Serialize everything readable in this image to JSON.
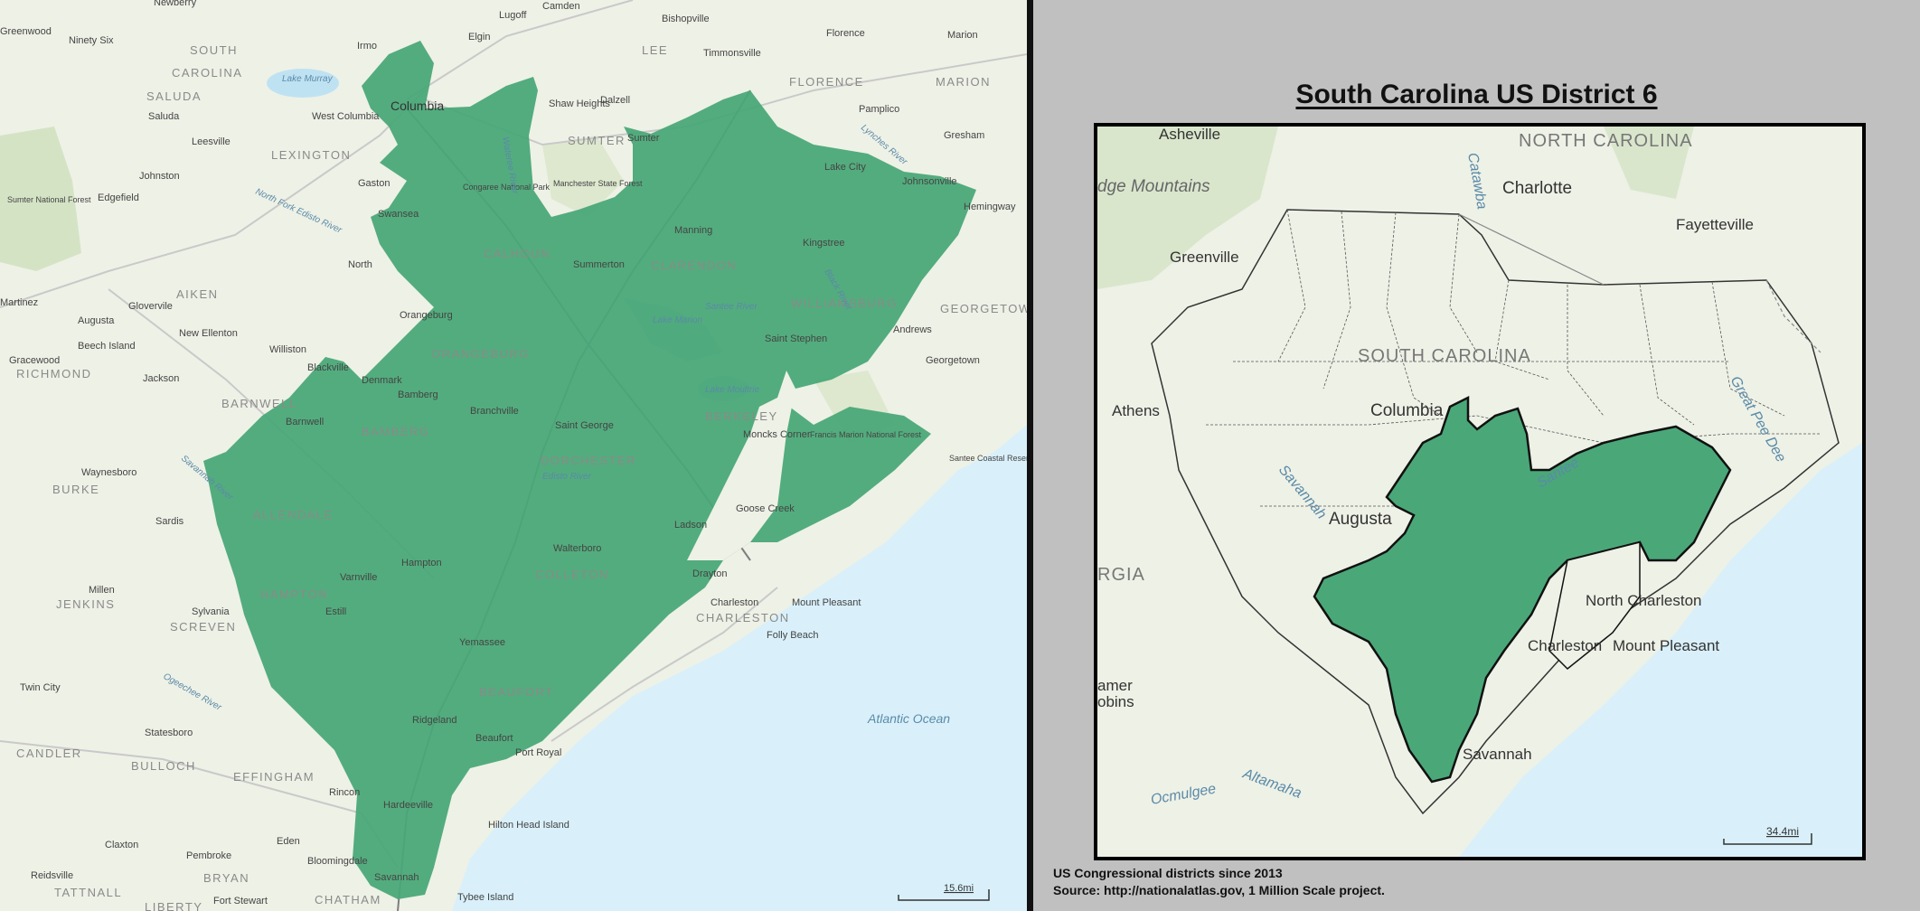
{
  "title": "South Carolina US District 6",
  "footer": {
    "line1": "US Congressional districts since 2013",
    "line2": "Source: http://nationalatlas.gov, 1 Million Scale project."
  },
  "colors": {
    "district_fill": "#4aa878",
    "ocean": "#d9f0fa",
    "land": "#eef1e6",
    "panel_bg": "#c0c0c0"
  },
  "main_map": {
    "scale_label": "15.6mi",
    "labels": {
      "states": [
        "SOUTH",
        "CAROLINA"
      ],
      "counties": [
        "SALUDA",
        "LEXINGTON",
        "AIKEN",
        "RICHMOND",
        "BARNWELL",
        "BURKE",
        "JENKINS",
        "SCREVEN",
        "CANDLER",
        "BULLOCH",
        "EFFINGHAM",
        "BRYAN",
        "CHATHAM",
        "TATTNALL",
        "LIBERTY",
        "ALLENDALE",
        "HAMPTON",
        "BAMBERG",
        "ORANGEBURG",
        "CALHOUN",
        "DORCHESTER",
        "COLLETON",
        "BEAUFORT",
        "CHARLESTON",
        "BERKELEY",
        "CLARENDON",
        "WILLIAMSBURG",
        "SUMTER",
        "FLORENCE",
        "MARION",
        "GEORGETOWN",
        "LEE"
      ],
      "places": [
        "Newberry",
        "Camden",
        "Lugoff",
        "Bishopville",
        "Florence",
        "Marion",
        "Irmo",
        "Elgin",
        "Timmonsville",
        "Columbia",
        "West Columbia",
        "Shaw Heights",
        "Dalzell",
        "Pamplico",
        "Gresham",
        "Saluda",
        "Leesville",
        "Sumter",
        "Lake City",
        "Johnsonville",
        "Hemingway",
        "Gaston",
        "Swansea",
        "Manning",
        "Kingstree",
        "Johnston",
        "Edgefield",
        "North",
        "Summerton",
        "Orangeburg",
        "Andrews",
        "Saint Stephen",
        "Georgetown",
        "Glovervile",
        "New Ellenton",
        "Augusta",
        "Beech Island",
        "Gracewood",
        "Martinez",
        "Jackson",
        "Williston",
        "Blackville",
        "Denmark",
        "Bamberg",
        "Branchville",
        "Barnwell",
        "Saint George",
        "Moncks Corner",
        "Waynesboro",
        "Sardis",
        "Walterboro",
        "Ladson",
        "Goose Creek",
        "Hampton",
        "Varnville",
        "Estill",
        "Millen",
        "Sylvania",
        "Drayton",
        "Charleston",
        "Mount Pleasant",
        "Folly Beach",
        "Twin City",
        "Yemassee",
        "Statesboro",
        "Ridgeland",
        "Beaufort",
        "Port Royal",
        "Rincon",
        "Hardeeville",
        "Hilton Head Island",
        "Claxton",
        "Eden",
        "Pembroke",
        "Bloomingdale",
        "Savannah",
        "Reidsville",
        "Tybee Island",
        "Fort Stewart",
        "Ninety Six",
        "Greenwood",
        "Sumter National Forest",
        "Congaree National Park",
        "Manchester State Forest",
        "Francis Marion National Forest",
        "Santee Coastal Reserve"
      ],
      "water": [
        "Lake Murray",
        "Atlantic Ocean",
        "Lake Marion",
        "Lake Moultrie",
        "North Fork Edisto River",
        "Santee River",
        "Edisto River",
        "Black River",
        "Lynches River",
        "Ogeechee River",
        "Savannah River",
        "Wateree River"
      ]
    }
  },
  "inset_map": {
    "scale_label": "34.4mi",
    "labels": {
      "states": [
        "NORTH CAROLINA",
        "SOUTH CAROLINA",
        "RGIA"
      ],
      "places": [
        "Asheville",
        "Charlotte",
        "Fayetteville",
        "Greenville",
        "Columbia",
        "Athens",
        "Augusta",
        "North Charleston",
        "Charleston",
        "Mount Pleasant",
        "Savannah",
        "amer",
        "obins"
      ],
      "regions": [
        "dge Mountains"
      ],
      "water": [
        "Ocmulgee",
        "Altamaha",
        "Savannah",
        "Santee",
        "Catawba",
        "Great Pee Dee"
      ]
    }
  }
}
